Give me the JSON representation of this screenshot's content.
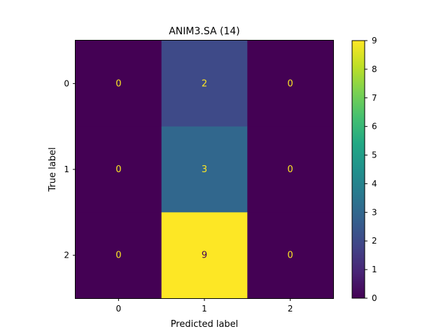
{
  "chart_data": {
    "type": "heatmap",
    "title": "ANIM3.SA (14)",
    "xlabel": "Predicted label",
    "ylabel": "True label",
    "x_categories": [
      "0",
      "1",
      "2"
    ],
    "y_categories": [
      "0",
      "1",
      "2"
    ],
    "values": [
      [
        0,
        2,
        0
      ],
      [
        0,
        3,
        0
      ],
      [
        0,
        9,
        0
      ]
    ],
    "colormap": "viridis",
    "vmin": 0,
    "vmax": 9,
    "colorbar_ticks": [
      "0",
      "1",
      "2",
      "3",
      "4",
      "5",
      "6",
      "7",
      "8",
      "9"
    ],
    "colors": {
      "0": "#440154",
      "2": "#30418e",
      "3": "#32648e",
      "9": "#fde725",
      "text_on_dark": "#fde725",
      "text_on_light": "#440154"
    }
  }
}
